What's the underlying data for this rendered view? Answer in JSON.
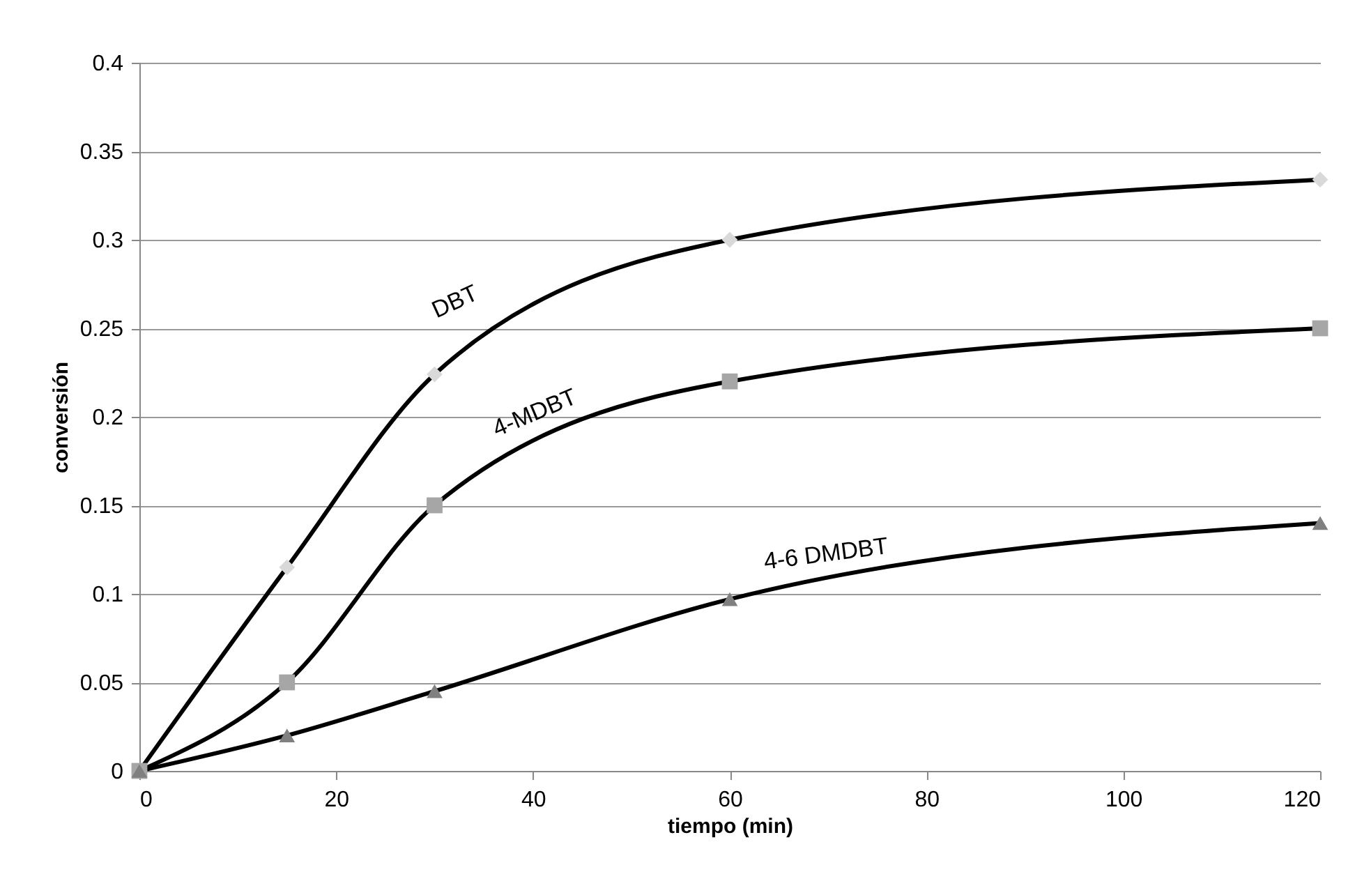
{
  "chart_data": {
    "type": "line",
    "xlabel": "tiempo (min)",
    "ylabel": "conversión",
    "x": [
      0,
      15,
      30,
      60,
      120
    ],
    "series": [
      {
        "name": "DBT",
        "color": "#d9d9d9",
        "marker": "diamond",
        "values": [
          0,
          0.115,
          0.224,
          0.3,
          0.334
        ]
      },
      {
        "name": "4-MDBT",
        "color": "#a6a6a6",
        "marker": "square",
        "values": [
          0,
          0.05,
          0.15,
          0.22,
          0.25
        ]
      },
      {
        "name": "4-6 DMDBT",
        "color": "#808080",
        "marker": "triangle",
        "values": [
          0,
          0.02,
          0.045,
          0.097,
          0.14
        ]
      }
    ],
    "xlim": [
      0,
      120
    ],
    "xticks": [
      0,
      20,
      40,
      60,
      80,
      100,
      120
    ],
    "ylim": [
      0,
      0.4
    ],
    "yticks": [
      0,
      0.05,
      0.1,
      0.15,
      0.2,
      0.25,
      0.3,
      0.35,
      0.4
    ],
    "grid": "y",
    "legend": false,
    "line_style": "solid"
  }
}
